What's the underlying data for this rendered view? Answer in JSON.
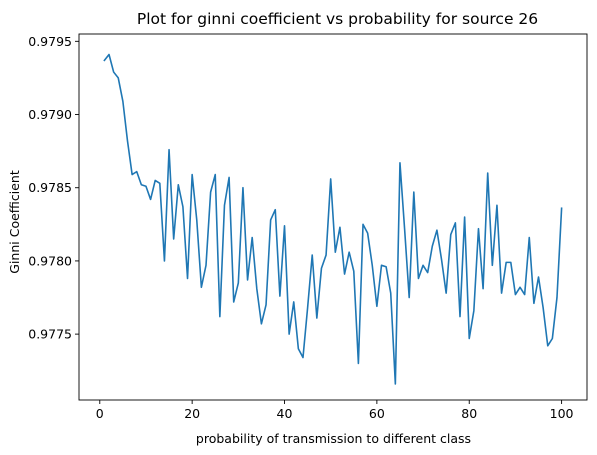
{
  "chart_data": {
    "type": "line",
    "title": "Plot for ginni coefficient vs probability for source 26",
    "xlabel": "probability of transmission to different class",
    "ylabel": "Ginni Coefficient",
    "xlim": [
      -4.5,
      105.5
    ],
    "ylim": [
      0.97705,
      0.97955
    ],
    "x_ticks": [
      0,
      20,
      40,
      60,
      80,
      100
    ],
    "x_tick_labels": [
      "0",
      "20",
      "40",
      "60",
      "80",
      "100"
    ],
    "y_ticks": [
      0.9775,
      0.978,
      0.9785,
      0.979,
      0.9795
    ],
    "y_tick_labels": [
      "0.9775",
      "0.9780",
      "0.9785",
      "0.9790",
      "0.9795"
    ],
    "grid": false,
    "series": [
      {
        "color": "#1f77b4",
        "x": [
          1,
          2,
          3,
          4,
          5,
          6,
          7,
          8,
          9,
          10,
          11,
          12,
          13,
          14,
          15,
          16,
          17,
          18,
          19,
          20,
          21,
          22,
          23,
          24,
          25,
          26,
          27,
          28,
          29,
          30,
          31,
          32,
          33,
          34,
          35,
          36,
          37,
          38,
          39,
          40,
          41,
          42,
          43,
          44,
          45,
          46,
          47,
          48,
          49,
          50,
          51,
          52,
          53,
          54,
          55,
          56,
          57,
          58,
          59,
          60,
          61,
          62,
          63,
          64,
          65,
          66,
          67,
          68,
          69,
          70,
          71,
          72,
          73,
          74,
          75,
          76,
          77,
          78,
          79,
          80,
          81,
          82,
          83,
          84,
          85,
          86,
          87,
          88,
          89,
          90,
          91,
          92,
          93,
          94,
          95,
          96,
          97,
          98,
          99,
          100
        ],
        "y": [
          0.97937,
          0.97941,
          0.97929,
          0.97925,
          0.97909,
          0.97882,
          0.97859,
          0.97861,
          0.97852,
          0.97851,
          0.97842,
          0.97855,
          0.97853,
          0.978,
          0.97876,
          0.97815,
          0.97852,
          0.97837,
          0.97788,
          0.97859,
          0.97828,
          0.97782,
          0.97797,
          0.97847,
          0.97859,
          0.97762,
          0.97838,
          0.97857,
          0.97772,
          0.97785,
          0.9785,
          0.97787,
          0.97816,
          0.97781,
          0.97757,
          0.9777,
          0.97828,
          0.97835,
          0.97776,
          0.97824,
          0.9775,
          0.97772,
          0.9774,
          0.97734,
          0.97768,
          0.97804,
          0.97761,
          0.97795,
          0.97804,
          0.97856,
          0.97806,
          0.97823,
          0.97791,
          0.97806,
          0.97793,
          0.9773,
          0.97825,
          0.97819,
          0.97797,
          0.97769,
          0.97797,
          0.97796,
          0.97778,
          0.97716,
          0.97867,
          0.97822,
          0.97775,
          0.97847,
          0.97788,
          0.97797,
          0.97792,
          0.9781,
          0.97821,
          0.97801,
          0.97778,
          0.97818,
          0.97826,
          0.97762,
          0.9783,
          0.97747,
          0.97766,
          0.97822,
          0.97781,
          0.9786,
          0.97797,
          0.97838,
          0.97778,
          0.97799,
          0.97799,
          0.97777,
          0.97782,
          0.97777,
          0.97816,
          0.97771,
          0.97789,
          0.97768,
          0.97742,
          0.97747,
          0.97775,
          0.97836
        ]
      }
    ]
  }
}
